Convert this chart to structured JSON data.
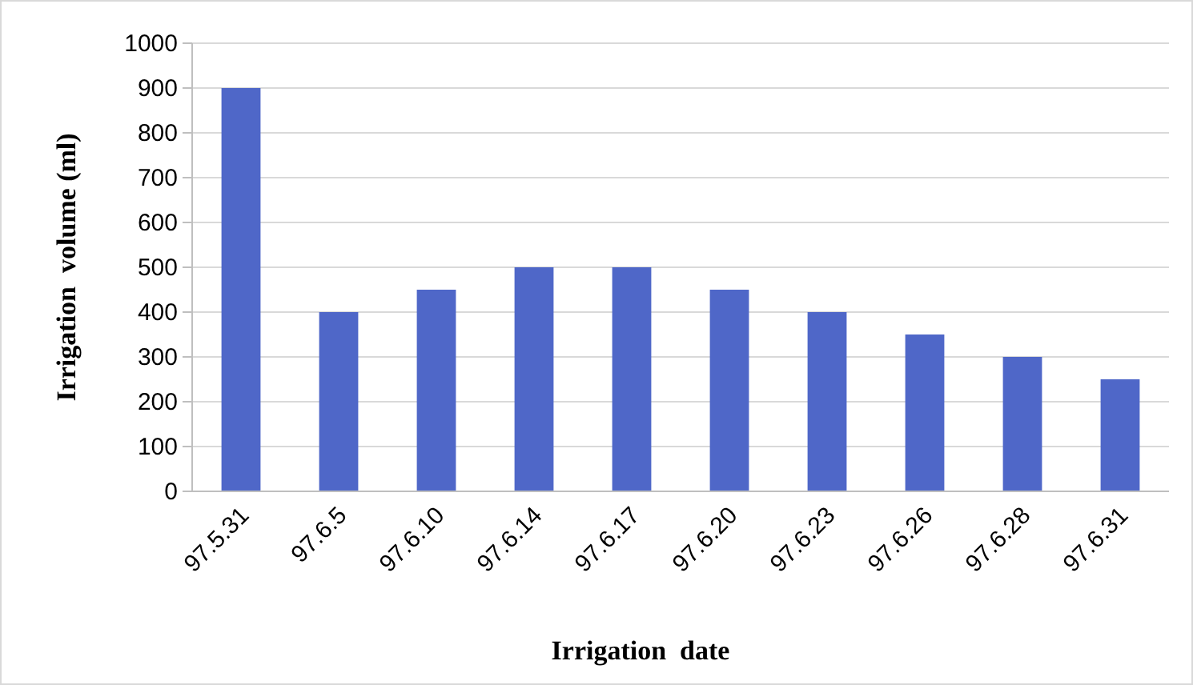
{
  "chart_data": {
    "type": "bar",
    "xlabel": "Irrigation  date",
    "ylabel": "Irrigation  volume (ml)",
    "categories": [
      "97.5.31",
      "97.6.5",
      "97.6.10",
      "97.6.14",
      "97.6.17",
      "97.6.20",
      "97.6.23",
      "97.6.26",
      "97.6.28",
      "97.6.31"
    ],
    "values": [
      900,
      400,
      450,
      500,
      500,
      450,
      400,
      350,
      300,
      250
    ],
    "color": "#4f67c8",
    "ylim": [
      0,
      1000
    ],
    "yticks": [
      0,
      100,
      200,
      300,
      400,
      500,
      600,
      700,
      800,
      900,
      1000
    ],
    "grid": "y"
  }
}
